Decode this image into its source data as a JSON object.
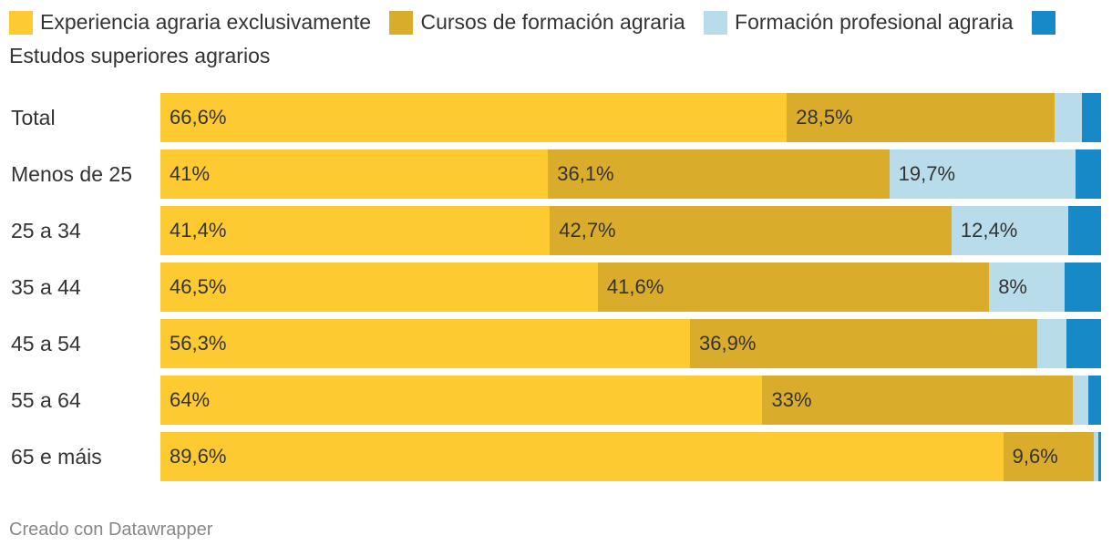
{
  "chart_data": {
    "type": "bar",
    "orientation": "horizontal",
    "stacked": true,
    "normalized_percent": true,
    "legend_position": "top",
    "categories": [
      "Total",
      "Menos de 25",
      "25 a 34",
      "35 a 44",
      "45 a 54",
      "55 a 64",
      "65 e máis"
    ],
    "series": [
      {
        "name": "Experiencia agraria exclusivamente",
        "color": "#fdca31",
        "values": [
          66.6,
          41,
          41.4,
          46.5,
          56.3,
          64,
          89.6
        ],
        "labels": [
          "66,6%",
          "41%",
          "41,4%",
          "46,5%",
          "56,3%",
          "64%",
          "89,6%"
        ]
      },
      {
        "name": "Cursos de formación agraria",
        "color": "#d9ac2b",
        "values": [
          28.5,
          36.1,
          42.7,
          41.6,
          36.9,
          33,
          9.6
        ],
        "labels": [
          "28,5%",
          "36,1%",
          "42,7%",
          "41,6%",
          "36,9%",
          "33%",
          "9,6%"
        ]
      },
      {
        "name": "Formación profesional agraria",
        "color": "#b9dcea",
        "values": [
          2.9,
          19.7,
          12.4,
          8,
          3.1,
          1.6,
          0.5
        ],
        "labels": [
          "",
          "19,7%",
          "12,4%",
          "8%",
          "",
          "",
          ""
        ]
      },
      {
        "name": "Estudos superiores agrarios",
        "color": "#1689c6",
        "values": [
          2,
          2.7,
          3.5,
          3.9,
          3.7,
          1.4,
          0.3
        ],
        "labels": [
          "",
          "",
          "",
          "",
          "",
          "",
          ""
        ]
      }
    ]
  },
  "footer": {
    "credit": "Creado con Datawrapper"
  }
}
